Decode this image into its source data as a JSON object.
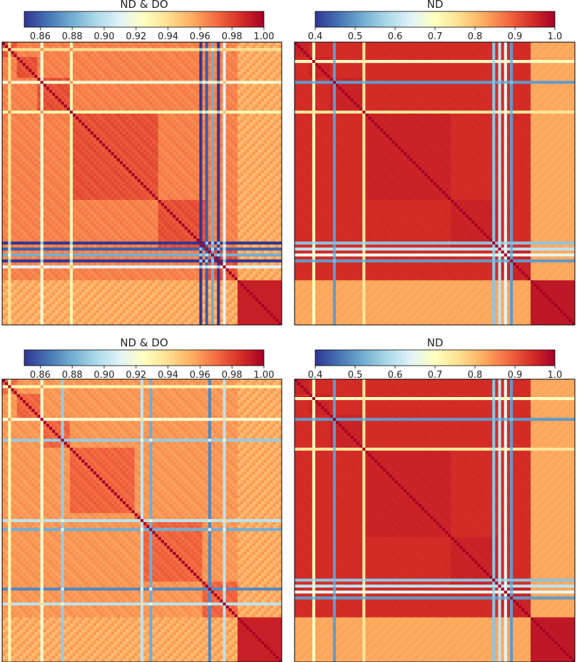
{
  "figure": {
    "panels": 4
  },
  "colormap": {
    "name": "RdYlBu_r",
    "stops": [
      "#313695",
      "#4575b4",
      "#74add1",
      "#abd9e9",
      "#e0f3f8",
      "#ffffbf",
      "#fee090",
      "#fdae61",
      "#f46d43",
      "#d73027",
      "#a50026"
    ]
  },
  "chart_data": [
    {
      "type": "heatmap",
      "title": "ND & DO",
      "colorbar": {
        "range": [
          0.85,
          1.0
        ],
        "ticks": [
          "0.86",
          "0.88",
          "0.90",
          "0.92",
          "0.94",
          "0.96",
          "0.98",
          "1.00"
        ],
        "tick_values": [
          0.86,
          0.88,
          0.9,
          0.92,
          0.94,
          0.96,
          0.98,
          1.0
        ],
        "position": "top"
      },
      "matrix": {
        "symmetric": true,
        "diagonal": 1.0,
        "n": 95,
        "block_boundaries": [
          0,
          5,
          12,
          23,
          53,
          70,
          80,
          95
        ],
        "base_value": 0.98,
        "lowcorr_rows": [
          {
            "index": 13,
            "value": 0.92
          },
          {
            "index": 23,
            "value": 0.93
          },
          {
            "index": 67,
            "value": 0.85
          },
          {
            "index": 69,
            "value": 0.86
          },
          {
            "index": 71,
            "value": 0.88
          },
          {
            "index": 73,
            "value": 0.85
          },
          {
            "index": 75,
            "value": 0.91
          },
          {
            "index": 2,
            "value": 0.94
          }
        ],
        "tail_block": {
          "start": 80,
          "cross_value": 0.95,
          "self_value": 0.99
        }
      }
    },
    {
      "type": "heatmap",
      "title": "ND",
      "colorbar": {
        "range": [
          0.4,
          1.0
        ],
        "ticks": [
          "0.4",
          "0.5",
          "0.6",
          "0.7",
          "0.8",
          "0.9",
          "1.0"
        ],
        "tick_values": [
          0.4,
          0.5,
          0.6,
          0.7,
          0.8,
          0.9,
          1.0
        ],
        "position": "top"
      },
      "matrix": {
        "symmetric": true,
        "diagonal": 1.0,
        "n": 95,
        "block_boundaries": [
          0,
          5,
          12,
          23,
          53,
          70,
          80,
          95
        ],
        "base_value": 0.96,
        "lowcorr_rows": [
          {
            "index": 13,
            "value": 0.5
          },
          {
            "index": 23,
            "value": 0.75
          },
          {
            "index": 67,
            "value": 0.55
          },
          {
            "index": 69,
            "value": 0.6
          },
          {
            "index": 71,
            "value": 0.65
          },
          {
            "index": 73,
            "value": 0.5
          },
          {
            "index": 6,
            "value": 0.7
          }
        ],
        "tail_block": {
          "start": 80,
          "cross_value": 0.82,
          "self_value": 0.97
        }
      }
    },
    {
      "type": "heatmap",
      "title": "ND & DO",
      "colorbar": {
        "range": [
          0.85,
          1.0
        ],
        "ticks": [
          "0.86",
          "0.88",
          "0.90",
          "0.92",
          "0.94",
          "0.96",
          "0.98",
          "1.00"
        ],
        "tick_values": [
          0.86,
          0.88,
          0.9,
          0.92,
          0.94,
          0.96,
          0.98,
          1.0
        ],
        "position": "top"
      },
      "matrix": {
        "symmetric": true,
        "diagonal": 1.0,
        "n": 95,
        "block_boundaries": [
          0,
          5,
          14,
          23,
          45,
          48,
          68,
          80,
          95
        ],
        "base_value": 0.975,
        "lowcorr_rows": [
          {
            "index": 13,
            "value": 0.92
          },
          {
            "index": 20,
            "value": 0.89
          },
          {
            "index": 47,
            "value": 0.9
          },
          {
            "index": 50,
            "value": 0.88
          },
          {
            "index": 70,
            "value": 0.87
          },
          {
            "index": 75,
            "value": 0.9
          },
          {
            "index": 2,
            "value": 0.93
          }
        ],
        "tail_block": {
          "start": 80,
          "cross_value": 0.95,
          "self_value": 0.99
        }
      }
    },
    {
      "type": "heatmap",
      "title": "ND",
      "colorbar": {
        "range": [
          0.4,
          1.0
        ],
        "ticks": [
          "0.4",
          "0.5",
          "0.6",
          "0.7",
          "0.8",
          "0.9",
          "1.0"
        ],
        "tick_values": [
          0.4,
          0.5,
          0.6,
          0.7,
          0.8,
          0.9,
          1.0
        ],
        "position": "top"
      },
      "matrix": {
        "symmetric": true,
        "diagonal": 1.0,
        "n": 95,
        "block_boundaries": [
          0,
          5,
          12,
          23,
          53,
          70,
          80,
          95
        ],
        "base_value": 0.96,
        "lowcorr_rows": [
          {
            "index": 13,
            "value": 0.5
          },
          {
            "index": 23,
            "value": 0.75
          },
          {
            "index": 67,
            "value": 0.55
          },
          {
            "index": 69,
            "value": 0.6
          },
          {
            "index": 71,
            "value": 0.65
          },
          {
            "index": 73,
            "value": 0.5
          },
          {
            "index": 6,
            "value": 0.7
          }
        ],
        "tail_block": {
          "start": 80,
          "cross_value": 0.82,
          "self_value": 0.97
        }
      }
    }
  ]
}
